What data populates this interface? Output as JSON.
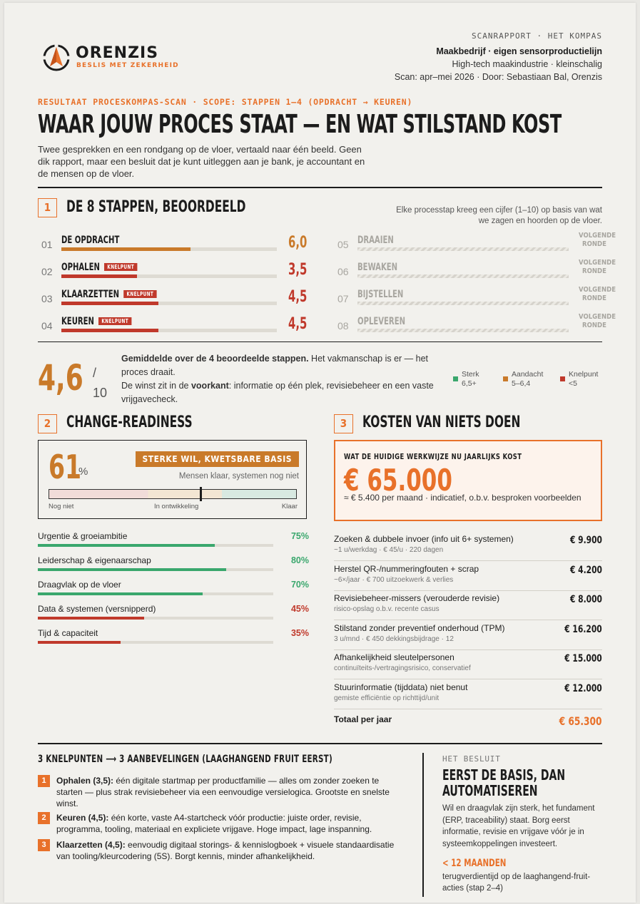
{
  "header": {
    "brand": "ORENZIS",
    "tagline": "BESLIS MET ZEKERHEID",
    "kicker": "SCANRAPPORT · HET KOMPAS",
    "company": "Maakbedrijf · eigen sensorproductielijn",
    "sector": "High-tech maakindustrie · kleinschalig",
    "scan": "Scan: apr–mei 2026 · Door: Sebastiaan Bal, Orenzis"
  },
  "hero": {
    "kicker": "RESULTAAT PROCESKOMPAS-SCAN · SCOPE: STAPPEN 1–4 (OPDRACHT → KEUREN)",
    "title": "WAAR JOUW PROCES STAAT — EN WAT STILSTAND KOST",
    "intro": "Twee gesprekken en een rondgang op de vloer, vertaald naar één beeld. Geen dik rapport, maar een besluit dat je kunt uitleggen aan je bank, je accountant en de mensen op de vloer."
  },
  "steps_section": {
    "number": "1",
    "title": "DE 8 STAPPEN, BEOORDEELD",
    "note": "Elke processtap kreeg een cijfer (1–10) op basis van wat we zagen en hoorden op de vloer.",
    "steps": [
      {
        "num": "01",
        "label": "DE OPDRACHT",
        "badge": "",
        "score": "6,0",
        "value": 6.0,
        "color": "#c97a2a"
      },
      {
        "num": "02",
        "label": "OPHALEN",
        "badge": "KNELPUNT",
        "score": "3,5",
        "value": 3.5,
        "color": "#c0392b"
      },
      {
        "num": "03",
        "label": "KLAARZETTEN",
        "badge": "KNELPUNT",
        "score": "4,5",
        "value": 4.5,
        "color": "#c0392b"
      },
      {
        "num": "04",
        "label": "KEUREN",
        "badge": "KNELPUNT",
        "score": "4,5",
        "value": 4.5,
        "color": "#c0392b"
      }
    ],
    "future_steps": [
      {
        "num": "05",
        "label": "DRAAIEN",
        "next": "VOLGENDE RONDE"
      },
      {
        "num": "06",
        "label": "BEWAKEN",
        "next": "VOLGENDE RONDE"
      },
      {
        "num": "07",
        "label": "BIJSTELLEN",
        "next": "VOLGENDE RONDE"
      },
      {
        "num": "08",
        "label": "OPLEVEREN",
        "next": "VOLGENDE RONDE"
      }
    ]
  },
  "average": {
    "value": "4,6",
    "slash": "/",
    "denominator": "10",
    "lead": "Gemiddelde over de 4 beoordeelde stappen.",
    "text1": " Het vakmanschap is er — het proces draait.",
    "text2": "De winst zit in de ",
    "text2_bold": "voorkant",
    "text3": ": informatie op één plek, revisiebeheer en een vaste vrijgavecheck.",
    "legend": [
      {
        "label": "Sterk",
        "range": "6,5+",
        "color": "#3aa76d"
      },
      {
        "label": "Aandacht",
        "range": "5–6,4",
        "color": "#c97a2a"
      },
      {
        "label": "Knelpunt",
        "range": "<5",
        "color": "#c0392b"
      }
    ]
  },
  "readiness": {
    "number": "2",
    "title": "CHANGE-READINESS",
    "pct": "61",
    "pct_value": 61,
    "pct_sign": "%",
    "badge": "STERKE WIL, KWETSBARE BASIS",
    "subtitle": "Mensen klaar, systemen nog niet",
    "scale_labels": [
      "Nog niet",
      "In ontwikkeling",
      "Klaar"
    ],
    "factors": [
      {
        "label": "Urgentie & groeiambitie",
        "value": "75%",
        "pct": 75,
        "color": "#3aa76d"
      },
      {
        "label": "Leiderschap & eigenaarschap",
        "value": "80%",
        "pct": 80,
        "color": "#3aa76d"
      },
      {
        "label": "Draagvlak op de vloer",
        "value": "70%",
        "pct": 70,
        "color": "#3aa76d"
      },
      {
        "label": "Data & systemen (versnipperd)",
        "value": "45%",
        "pct": 45,
        "color": "#c0392b"
      },
      {
        "label": "Tijd & capaciteit",
        "value": "35%",
        "pct": 35,
        "color": "#c0392b"
      }
    ]
  },
  "costs": {
    "number": "3",
    "title": "KOSTEN VAN NIETS DOEN",
    "box_kicker": "WAT DE HUIDIGE WERKWIJZE NU JAARLIJKS KOST",
    "box_amount": "€ 65.000",
    "box_sub": "≈ € 5.400 per maand · indicatief, o.b.v. besproken voorbeelden",
    "rows": [
      {
        "name": "Zoeken & dubbele invoer (info uit 6+ systemen)",
        "note": "~1 u/werkdag · € 45/u · 220 dagen",
        "amount": "€ 9.900"
      },
      {
        "name": "Herstel QR-/nummeringfouten + scrap",
        "note": "~6×/jaar · € 700 uitzoekwerk & verlies",
        "amount": "€ 4.200"
      },
      {
        "name": "Revisiebeheer-missers (verouderde revisie)",
        "note": "risico-opslag o.b.v. recente casus",
        "amount": "€ 8.000"
      },
      {
        "name": "Stilstand zonder preventief onderhoud (TPM)",
        "note": "3 u/mnd · € 450 dekkingsbijdrage · 12",
        "amount": "€ 16.200"
      },
      {
        "name": "Afhankelijkheid sleutelpersonen",
        "note": "continuïteits-/vertragingsrisico, conservatief",
        "amount": "€ 15.000"
      },
      {
        "name": "Stuurinformatie (tijddata) niet benut",
        "note": "gemiste efficiëntie op richttijd/unit",
        "amount": "€ 12.000"
      }
    ],
    "total_label": "Totaal per jaar",
    "total_amount": "€ 65.300"
  },
  "knelpunten": {
    "title": "3 KNELPUNTEN ⟶ 3 AANBEVELINGEN (LAAGHANGEND FRUIT EERST)",
    "items": [
      {
        "num": "1",
        "lead": "Ophalen (3,5):",
        "text": " één digitale startmap per productfamilie — alles om zonder zoeken te starten — plus strak revisiebeheer via een eenvoudige versielogica. Grootste en snelste winst."
      },
      {
        "num": "2",
        "lead": "Keuren (4,5):",
        "text": " één korte, vaste A4-startcheck vóór productie: juiste order, revisie, programma, tooling, materiaal en expliciete vrijgave. Hoge impact, lage inspanning."
      },
      {
        "num": "3",
        "lead": "Klaarzetten (4,5):",
        "text": " eenvoudig digitaal storings- & kennislogboek + visuele standaardisatie van tooling/kleurcodering (5S). Borgt kennis, minder afhankelijkheid."
      }
    ]
  },
  "besluit": {
    "kicker": "HET BESLUIT",
    "title": "EERST DE BASIS, DAN AUTOMATISEREN",
    "text": "Wil en draagvlak zijn sterk, het fundament (ERP, traceability) staat. Borg eerst informatie, revisie en vrijgave vóór je in systeemkoppelingen investeert.",
    "highlight": "< 12 MAANDEN",
    "foot": "terugverdientijd op de laaghangend-fruit-acties (stap 2–4)"
  },
  "colors": {
    "accent": "#e8712a",
    "amber": "#c97a2a",
    "red": "#c0392b",
    "green": "#3aa76d"
  }
}
